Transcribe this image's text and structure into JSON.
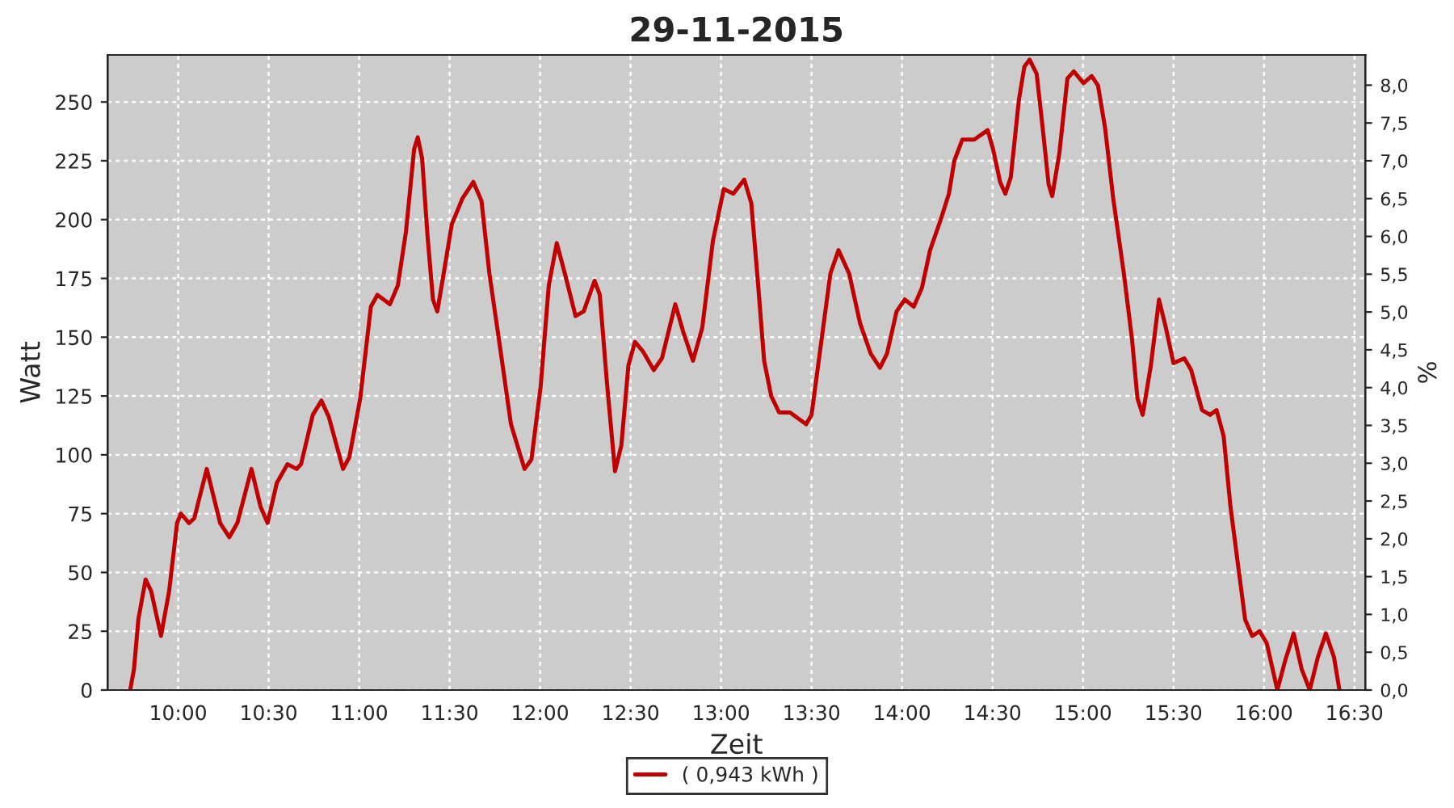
{
  "chart_data": {
    "type": "line",
    "title": "29-11-2015",
    "xlabel": "Zeit",
    "ylabel": "Watt",
    "y2label": "%",
    "xlim": [
      9.61,
      16.56
    ],
    "ylim": [
      0,
      270
    ],
    "y2lim": [
      0,
      8.4
    ],
    "xticks": [
      {
        "value": 10,
        "label": "10:00"
      },
      {
        "value": 10.5,
        "label": "10:30"
      },
      {
        "value": 11,
        "label": "11:00"
      },
      {
        "value": 11.5,
        "label": "11:30"
      },
      {
        "value": 12,
        "label": "12:00"
      },
      {
        "value": 12.5,
        "label": "12:30"
      },
      {
        "value": 13,
        "label": "13:00"
      },
      {
        "value": 13.5,
        "label": "13:30"
      },
      {
        "value": 14,
        "label": "14:00"
      },
      {
        "value": 14.5,
        "label": "14:30"
      },
      {
        "value": 15,
        "label": "15:00"
      },
      {
        "value": 15.5,
        "label": "15:30"
      },
      {
        "value": 16,
        "label": "16:00"
      },
      {
        "value": 16.5,
        "label": "16:30"
      }
    ],
    "yticks": [
      0,
      25,
      50,
      75,
      100,
      125,
      150,
      175,
      200,
      225,
      250
    ],
    "y2ticks": [
      {
        "value": 0,
        "label": "0,0"
      },
      {
        "value": 0.5,
        "label": "0,5"
      },
      {
        "value": 1,
        "label": "1,0"
      },
      {
        "value": 1.5,
        "label": "1,5"
      },
      {
        "value": 2,
        "label": "2,0"
      },
      {
        "value": 2.5,
        "label": "2,5"
      },
      {
        "value": 3,
        "label": "3,0"
      },
      {
        "value": 3.5,
        "label": "3,5"
      },
      {
        "value": 4,
        "label": "4,0"
      },
      {
        "value": 4.5,
        "label": "4,5"
      },
      {
        "value": 5,
        "label": "5,0"
      },
      {
        "value": 5.5,
        "label": "5,5"
      },
      {
        "value": 6,
        "label": "6,0"
      },
      {
        "value": 6.5,
        "label": "6,5"
      },
      {
        "value": 7,
        "label": "7,0"
      },
      {
        "value": 7.5,
        "label": "7,5"
      },
      {
        "value": 8,
        "label": "8,0"
      }
    ],
    "grid": true,
    "legend": "bottom",
    "marker": "none",
    "line_style": "solid",
    "series": [
      {
        "name": "( 0,943 kWh )",
        "color": "#c00000",
        "x": [
          9.735,
          9.756,
          9.78,
          9.82,
          9.851,
          9.905,
          9.95,
          9.994,
          10.015,
          10.06,
          10.089,
          10.158,
          10.232,
          10.283,
          10.327,
          10.405,
          10.455,
          10.494,
          10.545,
          10.604,
          10.655,
          10.679,
          10.744,
          10.792,
          10.833,
          10.911,
          10.946,
          11.006,
          11.065,
          11.101,
          11.17,
          11.214,
          11.259,
          11.304,
          11.324,
          11.348,
          11.378,
          11.408,
          11.432,
          11.467,
          11.512,
          11.571,
          11.631,
          11.676,
          11.72,
          11.78,
          11.839,
          11.914,
          11.952,
          12.003,
          12.048,
          12.092,
          12.137,
          12.196,
          12.241,
          12.301,
          12.33,
          12.369,
          12.414,
          12.449,
          12.488,
          12.524,
          12.568,
          12.628,
          12.673,
          12.747,
          12.792,
          12.845,
          12.896,
          12.955,
          13.015,
          13.068,
          13.128,
          13.167,
          13.202,
          13.238,
          13.277,
          13.321,
          13.381,
          13.47,
          13.5,
          13.545,
          13.604,
          13.649,
          13.708,
          13.768,
          13.827,
          13.878,
          13.917,
          13.97,
          14.015,
          14.065,
          14.11,
          14.155,
          14.214,
          14.259,
          14.289,
          14.333,
          14.399,
          14.473,
          14.503,
          14.542,
          14.571,
          14.601,
          14.646,
          14.676,
          14.705,
          14.744,
          14.78,
          14.81,
          14.83,
          14.869,
          14.914,
          14.949,
          15.003,
          15.048,
          15.083,
          15.122,
          15.167,
          15.226,
          15.271,
          15.301,
          15.33,
          15.375,
          15.42,
          15.458,
          15.5,
          15.56,
          15.598,
          15.658,
          15.702,
          15.738,
          15.777,
          15.815,
          15.857,
          15.896,
          15.935,
          15.976,
          16.015,
          16.074,
          16.119,
          16.164,
          16.208,
          16.253,
          16.298,
          16.342,
          16.387,
          16.417
        ],
        "values": [
          0,
          9,
          30,
          47,
          42,
          23,
          42,
          71,
          75,
          71,
          73,
          94,
          71,
          65,
          71,
          94,
          78,
          71,
          88,
          96,
          94,
          96,
          117,
          123,
          116,
          94,
          99,
          124,
          163,
          168,
          164,
          172,
          195,
          230,
          235,
          226,
          193,
          166,
          161,
          177,
          198,
          209,
          216,
          208,
          177,
          145,
          113,
          94,
          98,
          129,
          172,
          190,
          177,
          159,
          161,
          174,
          168,
          131,
          93,
          104,
          138,
          148,
          144,
          136,
          141,
          164,
          152,
          140,
          154,
          191,
          213,
          211,
          217,
          207,
          175,
          140,
          125,
          118,
          118,
          113,
          117,
          143,
          177,
          187,
          177,
          156,
          143,
          137,
          143,
          161,
          166,
          163,
          171,
          187,
          200,
          211,
          225,
          234,
          234,
          238,
          230,
          216,
          211,
          218,
          251,
          265,
          268,
          262,
          237,
          215,
          210,
          228,
          260,
          263,
          258,
          261,
          257,
          239,
          209,
          177,
          149,
          124,
          117,
          138,
          166,
          154,
          139,
          141,
          136,
          119,
          117,
          119,
          108,
          78,
          53,
          30,
          23,
          25,
          20,
          0,
          13,
          24,
          9,
          0,
          14,
          24,
          14,
          0
        ]
      }
    ]
  }
}
